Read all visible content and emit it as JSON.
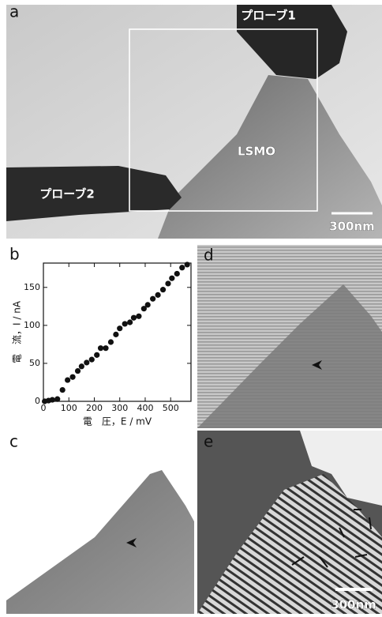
{
  "panels": {
    "a": {
      "label": "a",
      "probe1": "プローブ1",
      "sample": "LSMO",
      "probe2": "プローブ2",
      "scale_bar": "300nm"
    },
    "c": {
      "label": "c"
    },
    "d": {
      "label": "d"
    },
    "e": {
      "label": "e",
      "scale_bar": "300nm"
    }
  },
  "chart_data": {
    "type": "scatter",
    "label": "b",
    "x_label": "電　圧，E / mV",
    "y_label": "電　流，I / nA",
    "x": [
      5,
      20,
      35,
      55,
      75,
      95,
      115,
      135,
      150,
      170,
      190,
      210,
      225,
      245,
      265,
      285,
      300,
      320,
      340,
      355,
      375,
      395,
      410,
      430,
      450,
      470,
      490,
      505,
      525,
      545,
      565
    ],
    "values": [
      0,
      1,
      2,
      3,
      15,
      28,
      32,
      40,
      46,
      51,
      55,
      61,
      70,
      70,
      78,
      88,
      96,
      102,
      104,
      110,
      112,
      122,
      127,
      135,
      140,
      147,
      155,
      162,
      168,
      176,
      180
    ],
    "color": "#111111",
    "xlim": [
      0,
      580
    ],
    "xticks": [
      0,
      100,
      200,
      300,
      400,
      500
    ],
    "ylim": [
      0,
      182
    ],
    "yticks": [
      0,
      50,
      100,
      150
    ]
  }
}
